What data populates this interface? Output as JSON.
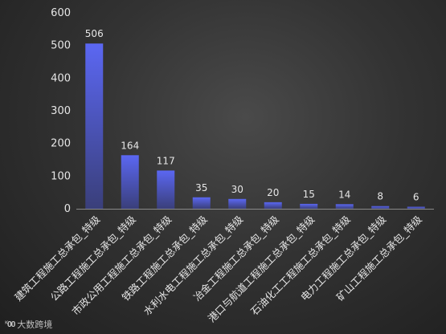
{
  "chart_data": {
    "type": "bar",
    "title": "",
    "xlabel": "",
    "ylabel": "",
    "ylim": [
      0,
      600
    ],
    "yticks": [
      0,
      100,
      200,
      300,
      400,
      500,
      600
    ],
    "grid": false,
    "categories": [
      "建筑工程施工总承包_特级",
      "公路工程施工总承包_特级",
      "市政公用工程施工总承包_特级",
      "铁路工程施工总承包_特级",
      "水利水电工程施工总承包_特级",
      "冶金工程施工总承包_特级",
      "港口与航道工程施工总承包_特级",
      "石油化工工程施工总承包_特级",
      "电力工程施工总承包_特级",
      "矿山工程施工总承包_特级"
    ],
    "values": [
      506,
      164,
      117,
      35,
      30,
      20,
      15,
      14,
      8,
      6
    ],
    "bar_color_top": "#5b67f2",
    "bar_color_bottom": "#3a3f7a"
  },
  "watermark": {
    "logo": "ᴷ𝟎𝟎",
    "text": "大数跨境"
  }
}
